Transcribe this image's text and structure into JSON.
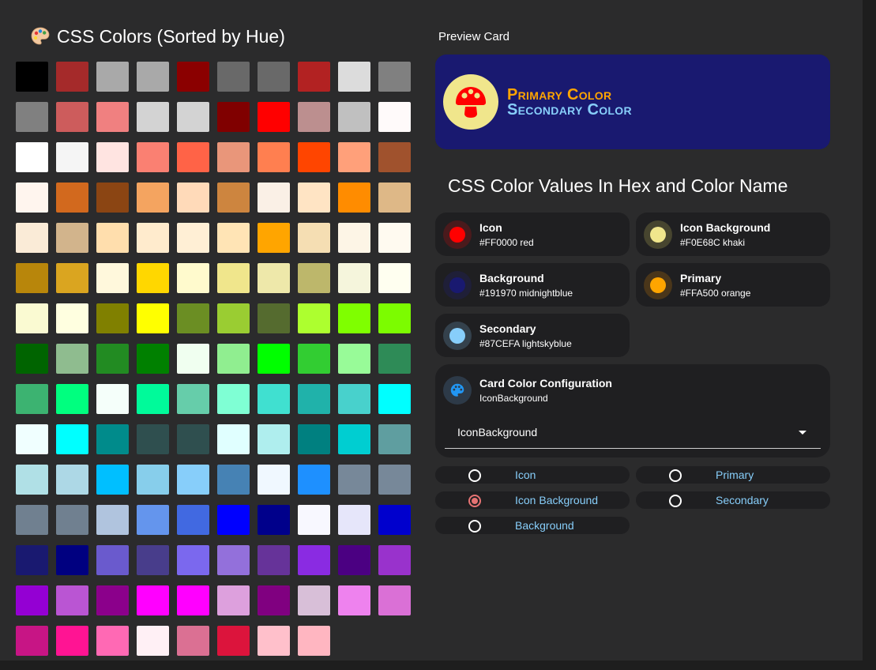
{
  "left_panel": {
    "title": "CSS Colors (Sorted by Hue)",
    "palette_icon": "palette-emoji"
  },
  "swatches": [
    "#000000",
    "#a52a2a",
    "#a9a9a9",
    "#a9a9a9",
    "#8b0000",
    "#696969",
    "#696969",
    "#b22222",
    "#dcdcdc",
    "#808080",
    "#808080",
    "#cd5c5c",
    "#f08080",
    "#d3d3d3",
    "#d3d3d3",
    "#800000",
    "#ff0000",
    "#bc8f8f",
    "#c0c0c0",
    "#fffafa",
    "#ffffff",
    "#f5f5f5",
    "#ffe4e1",
    "#fa8072",
    "#ff6347",
    "#e9967a",
    "#ff7f50",
    "#ff4500",
    "#ffa07a",
    "#a0522d",
    "#fff5ee",
    "#d2691e",
    "#8b4513",
    "#f4a460",
    "#ffdab9",
    "#cd853f",
    "#faf0e6",
    "#ffe4c4",
    "#ff8c00",
    "#deb887",
    "#faebd7",
    "#d2b48c",
    "#ffdead",
    "#ffebcd",
    "#ffefd5",
    "#ffe4b5",
    "#ffa500",
    "#f5deb3",
    "#fdf5e6",
    "#fffaf0",
    "#b8860b",
    "#daa520",
    "#fff8dc",
    "#ffd700",
    "#fffacd",
    "#f0e68c",
    "#eee8aa",
    "#bdb76b",
    "#f5f5dc",
    "#fffff0",
    "#fafad2",
    "#ffffe0",
    "#808000",
    "#ffff00",
    "#6b8e23",
    "#9acd32",
    "#556b2f",
    "#adff2f",
    "#7fff00",
    "#7cfc00",
    "#006400",
    "#8fbc8f",
    "#228b22",
    "#008000",
    "#f0fff0",
    "#90ee90",
    "#00ff00",
    "#32cd32",
    "#98fb98",
    "#2e8b57",
    "#3cb371",
    "#00ff7f",
    "#f5fffa",
    "#00fa9a",
    "#66cdaa",
    "#7fffd4",
    "#40e0d0",
    "#20b2aa",
    "#48d1cc",
    "#00ffff",
    "#f0ffff",
    "#00ffff",
    "#008b8b",
    "#2f4f4f",
    "#2f4f4f",
    "#e0ffff",
    "#afeeee",
    "#008080",
    "#00ced1",
    "#5f9ea0",
    "#b0e0e6",
    "#add8e6",
    "#00bfff",
    "#87ceeb",
    "#87cefa",
    "#4682b4",
    "#f0f8ff",
    "#1e90ff",
    "#778899",
    "#778899",
    "#708090",
    "#708090",
    "#b0c4de",
    "#6495ed",
    "#4169e1",
    "#0000ff",
    "#00008b",
    "#f8f8ff",
    "#e6e6fa",
    "#0000cd",
    "#191970",
    "#000080",
    "#6a5acd",
    "#483d8b",
    "#7b68ee",
    "#9370db",
    "#663399",
    "#8a2be2",
    "#4b0082",
    "#9932cc",
    "#9400d3",
    "#ba55d3",
    "#8b008b",
    "#ff00ff",
    "#ff00ff",
    "#dda0dd",
    "#800080",
    "#d8bfd8",
    "#ee82ee",
    "#da70d6",
    "#c71585",
    "#ff1493",
    "#ff69b4",
    "#fff0f5",
    "#db7093",
    "#dc143c",
    "#ffc0cb",
    "#ffb6c1"
  ],
  "preview": {
    "label": "Preview Card",
    "background": "#191970",
    "icon_background": "#F0E68C",
    "icon_color": "#FF0000",
    "icon": "mushroom-icon",
    "primary_text": "Primary Color",
    "primary_color": "#FFA500",
    "secondary_text": "Secondary Color",
    "secondary_color": "#87CEFA"
  },
  "values_section": {
    "title": "CSS Color Values In Hex and Color Name",
    "items": [
      {
        "name": "Icon",
        "value": "#FF0000 red",
        "color": "#ff0000",
        "ring": "#4a1a1c"
      },
      {
        "name": "Icon Background",
        "value": "#F0E68C khaki",
        "color": "#f0e68c",
        "ring": "#47452f"
      },
      {
        "name": "Background",
        "value": "#191970 midnightblue",
        "color": "#191970",
        "ring": "#1f1f38"
      },
      {
        "name": "Primary",
        "value": "#FFA500 orange",
        "color": "#ffa500",
        "ring": "#4a361a"
      },
      {
        "name": "Secondary",
        "value": "#87CEFA lightskyblue",
        "color": "#87cefa",
        "ring": "#34414c"
      }
    ]
  },
  "config": {
    "title": "Card Color Configuration",
    "subtitle": "IconBackground",
    "icon": "palette-icon",
    "select_value": "IconBackground"
  },
  "radios": [
    {
      "label": "Icon",
      "checked": false
    },
    {
      "label": "Primary",
      "checked": false
    },
    {
      "label": "Icon Background",
      "checked": true
    },
    {
      "label": "Secondary",
      "checked": false
    },
    {
      "label": "Background",
      "checked": false
    }
  ]
}
